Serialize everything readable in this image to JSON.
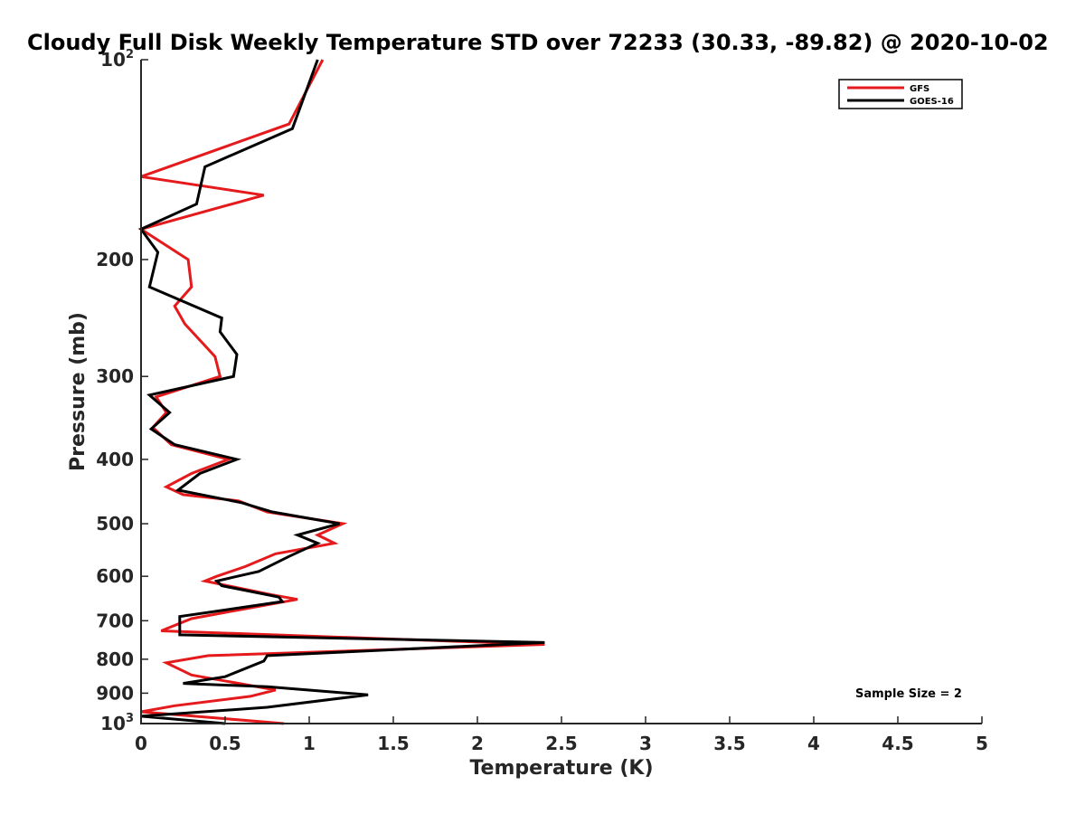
{
  "chart_data": {
    "type": "line",
    "title": "Cloudy Full Disk Weekly Temperature STD over 72233 (30.33, -89.82) @ 2020-10-02",
    "xlabel": "Temperature (K)",
    "ylabel": "Pressure (mb)",
    "xlim": [
      0,
      5
    ],
    "ylim": [
      100,
      1000
    ],
    "yscale": "log",
    "y_reversed": true,
    "x_ticks": [
      0,
      0.5,
      1,
      1.5,
      2,
      2.5,
      3,
      3.5,
      4,
      4.5,
      5
    ],
    "x_tick_labels": [
      "0",
      "0.5",
      "1",
      "1.5",
      "2",
      "2.5",
      "3",
      "3.5",
      "4",
      "4.5",
      "5"
    ],
    "y_ticks": [
      {
        "value": 100,
        "base": "10",
        "exp": "2"
      },
      {
        "value": 200,
        "label": "200"
      },
      {
        "value": 300,
        "label": "300"
      },
      {
        "value": 400,
        "label": "400"
      },
      {
        "value": 500,
        "label": "500"
      },
      {
        "value": 600,
        "label": "600"
      },
      {
        "value": 700,
        "label": "700"
      },
      {
        "value": 800,
        "label": "800"
      },
      {
        "value": 900,
        "label": "900"
      },
      {
        "value": 1000,
        "base": "10",
        "exp": "3"
      }
    ],
    "legend_position": "top-right",
    "annotation": "Sample Size = 2",
    "series": [
      {
        "name": "GFS",
        "color": "#e41a1c",
        "points": [
          [
            1.08,
            100
          ],
          [
            0.88,
            125
          ],
          [
            0.0,
            150
          ],
          [
            0.73,
            160
          ],
          [
            0.0,
            180
          ],
          [
            0.28,
            200
          ],
          [
            0.3,
            220
          ],
          [
            0.2,
            235
          ],
          [
            0.26,
            250
          ],
          [
            0.44,
            280
          ],
          [
            0.47,
            300
          ],
          [
            0.09,
            322
          ],
          [
            0.15,
            340
          ],
          [
            0.07,
            358
          ],
          [
            0.18,
            380
          ],
          [
            0.52,
            400
          ],
          [
            0.3,
            420
          ],
          [
            0.15,
            440
          ],
          [
            0.25,
            452
          ],
          [
            0.58,
            462
          ],
          [
            0.75,
            480
          ],
          [
            1.2,
            500
          ],
          [
            1.05,
            520
          ],
          [
            1.15,
            535
          ],
          [
            0.8,
            555
          ],
          [
            0.62,
            580
          ],
          [
            0.45,
            600
          ],
          [
            0.38,
            610
          ],
          [
            0.78,
            640
          ],
          [
            0.93,
            650
          ],
          [
            0.5,
            680
          ],
          [
            0.3,
            695
          ],
          [
            0.12,
            725
          ],
          [
            2.4,
            760
          ],
          [
            0.4,
            790
          ],
          [
            0.15,
            810
          ],
          [
            0.3,
            845
          ],
          [
            0.8,
            890
          ],
          [
            0.65,
            910
          ],
          [
            0.2,
            940
          ],
          [
            0.0,
            960
          ],
          [
            0.85,
            1000
          ]
        ]
      },
      {
        "name": "GOES-16",
        "color": "#000000",
        "points": [
          [
            1.05,
            100
          ],
          [
            0.9,
            127
          ],
          [
            0.38,
            145
          ],
          [
            0.33,
            165
          ],
          [
            0.0,
            180
          ],
          [
            0.1,
            195
          ],
          [
            0.05,
            220
          ],
          [
            0.48,
            245
          ],
          [
            0.47,
            257
          ],
          [
            0.57,
            278
          ],
          [
            0.55,
            300
          ],
          [
            0.05,
            320
          ],
          [
            0.17,
            340
          ],
          [
            0.06,
            360
          ],
          [
            0.2,
            380
          ],
          [
            0.57,
            400
          ],
          [
            0.35,
            420
          ],
          [
            0.22,
            445
          ],
          [
            0.6,
            465
          ],
          [
            0.78,
            480
          ],
          [
            1.18,
            500
          ],
          [
            0.93,
            520
          ],
          [
            1.05,
            535
          ],
          [
            0.88,
            560
          ],
          [
            0.7,
            590
          ],
          [
            0.45,
            610
          ],
          [
            0.48,
            620
          ],
          [
            0.82,
            645
          ],
          [
            0.84,
            655
          ],
          [
            0.23,
            690
          ],
          [
            0.23,
            735
          ],
          [
            2.4,
            755
          ],
          [
            0.75,
            790
          ],
          [
            0.73,
            805
          ],
          [
            0.5,
            850
          ],
          [
            0.25,
            870
          ],
          [
            0.75,
            880
          ],
          [
            1.35,
            905
          ],
          [
            0.75,
            945
          ],
          [
            0.0,
            975
          ],
          [
            0.5,
            1000
          ]
        ]
      }
    ]
  }
}
